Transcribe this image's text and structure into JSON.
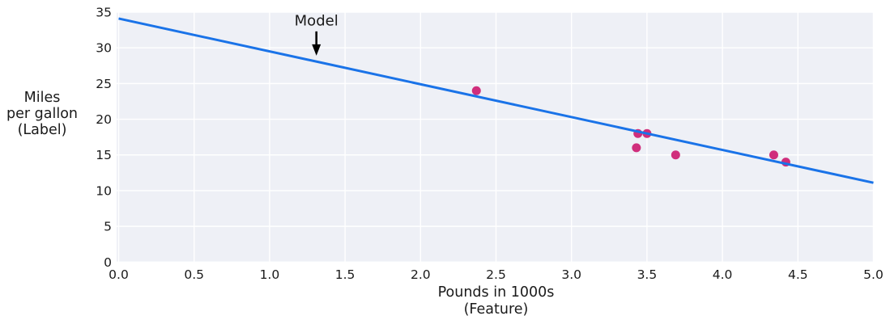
{
  "chart_data": {
    "type": "scatter",
    "title": "",
    "xlabel_lines": [
      "Pounds in 1000s",
      "(Feature)"
    ],
    "ylabel_lines": [
      "Miles",
      "per gallon",
      "(Label)"
    ],
    "xlim": [
      0,
      5
    ],
    "ylim": [
      0,
      35
    ],
    "xticks": [
      0,
      0.5,
      1,
      1.5,
      2,
      2.5,
      3,
      3.5,
      4,
      4.5,
      5
    ],
    "xtick_labels": [
      "0.0",
      "0.5",
      "1.0",
      "1.5",
      "2.0",
      "2.5",
      "3.0",
      "3.5",
      "4.0",
      "4.5",
      "5.0"
    ],
    "yticks": [
      0,
      5,
      10,
      15,
      20,
      25,
      30,
      35
    ],
    "ytick_labels": [
      "0",
      "5",
      "10",
      "15",
      "20",
      "25",
      "30",
      "35"
    ],
    "grid": true,
    "legend_position": "none",
    "series": [
      {
        "name": "observations",
        "type": "scatter",
        "x": [
          2.37,
          3.43,
          3.44,
          3.5,
          3.69,
          4.34,
          4.42
        ],
        "y": [
          24,
          16,
          18,
          18,
          15,
          15,
          14
        ]
      },
      {
        "name": "model-line",
        "type": "line",
        "x": [
          0,
          5
        ],
        "y": [
          34.1,
          11.1
        ]
      }
    ],
    "annotation": {
      "text": "Model",
      "x": 1.31,
      "text_y": 33.8,
      "arrow_from_y": 32.3,
      "arrow_tip_y": 28.9
    },
    "colors": {
      "model_line": "#1a73e8",
      "points": "#d02e7c",
      "plot_background": "#eef0f6",
      "gridline": "#ffffff",
      "page_background": "#ffffff",
      "text": "#1a1a1a"
    }
  }
}
